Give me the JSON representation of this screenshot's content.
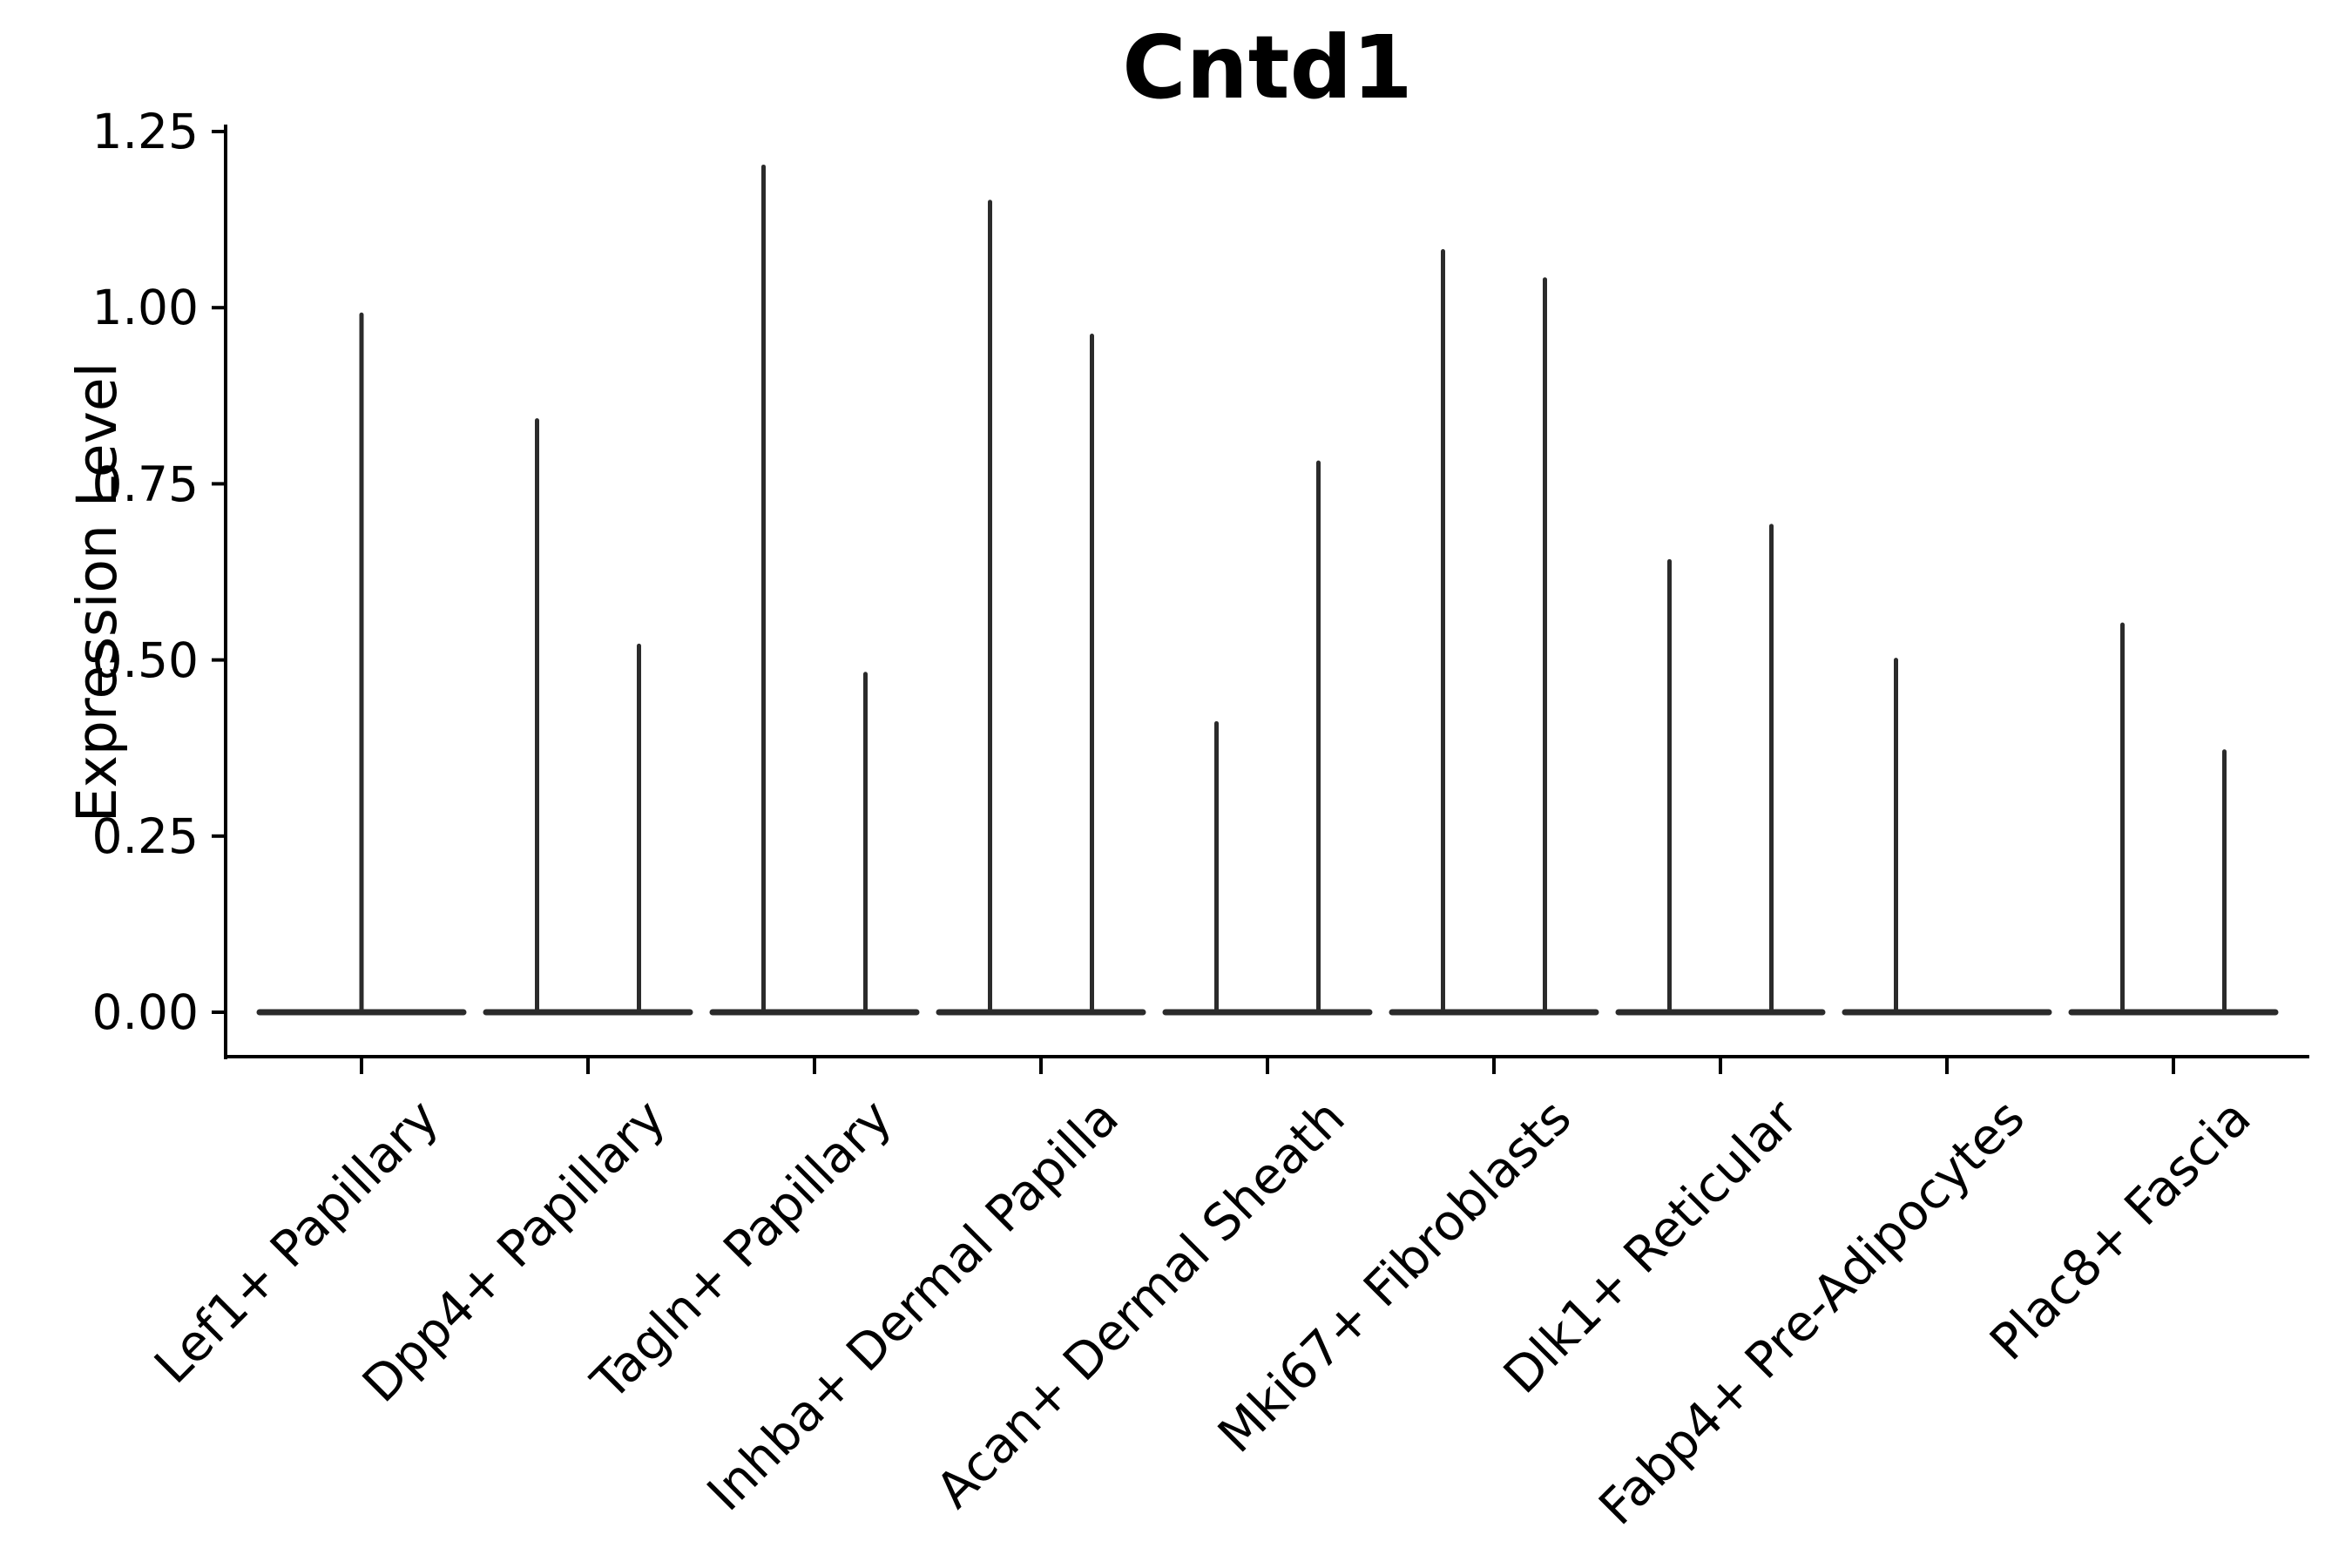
{
  "figure": {
    "background": "#ffffff",
    "text_color": "#000000",
    "axis_color": "#000000",
    "violin_color": "#2b2b2b"
  },
  "chart_data": {
    "type": "violin",
    "title": "Cntd1",
    "xlabel": "",
    "ylabel": "Expression Level",
    "ylim": [
      -0.06,
      1.26
    ],
    "grid": false,
    "legend": "none",
    "baseline_value": 0.0,
    "yticks": [
      {
        "label": "1.25",
        "value": 1.25
      },
      {
        "label": "1.00",
        "value": 1.0
      },
      {
        "label": "0.75",
        "value": 0.75
      },
      {
        "label": "0.50",
        "value": 0.5
      },
      {
        "label": "0.25",
        "value": 0.25
      },
      {
        "label": "0.00",
        "value": 0.0
      }
    ],
    "categories": [
      "Lef1+ Papillary",
      "Dpp4+ Papillary",
      "Tagln+ Papillary",
      "Inhba+ Dermal Papilla",
      "Acan+ Dermal Sheath",
      "Mki67+ Fibroblasts",
      "Dlk1+ Reticular",
      "Fabp4+ Pre-Adipocytes",
      "Plac8+ Fascia"
    ],
    "violins": [
      {
        "category": "Lef1+ Papillary",
        "spikes": [
          {
            "position": "center",
            "offset": 0,
            "max_expression": 0.99
          }
        ]
      },
      {
        "category": "Dpp4+ Papillary",
        "spikes": [
          {
            "position": "left",
            "offset": -0.225,
            "max_expression": 0.84
          },
          {
            "position": "right",
            "offset": 0.225,
            "max_expression": 0.52
          }
        ]
      },
      {
        "category": "Tagln+ Papillary",
        "spikes": [
          {
            "position": "left",
            "offset": -0.225,
            "max_expression": 1.2
          },
          {
            "position": "right",
            "offset": 0.225,
            "max_expression": 0.48
          }
        ]
      },
      {
        "category": "Inhba+ Dermal Papilla",
        "spikes": [
          {
            "position": "left",
            "offset": -0.225,
            "max_expression": 1.15
          },
          {
            "position": "right",
            "offset": 0.225,
            "max_expression": 0.96
          }
        ]
      },
      {
        "category": "Acan+ Dermal Sheath",
        "spikes": [
          {
            "position": "left",
            "offset": -0.225,
            "max_expression": 0.41
          },
          {
            "position": "right",
            "offset": 0.225,
            "max_expression": 0.78
          }
        ]
      },
      {
        "category": "Mki67+ Fibroblasts",
        "spikes": [
          {
            "position": "left",
            "offset": -0.225,
            "max_expression": 1.08
          },
          {
            "position": "right",
            "offset": 0.225,
            "max_expression": 1.04
          }
        ]
      },
      {
        "category": "Dlk1+ Reticular",
        "spikes": [
          {
            "position": "left",
            "offset": -0.225,
            "max_expression": 0.64
          },
          {
            "position": "right",
            "offset": 0.225,
            "max_expression": 0.69
          }
        ]
      },
      {
        "category": "Fabp4+ Pre-Adipocytes",
        "spikes": [
          {
            "position": "left",
            "offset": -0.225,
            "max_expression": 0.5
          }
        ]
      },
      {
        "category": "Plac8+ Fascia",
        "spikes": [
          {
            "position": "left",
            "offset": -0.225,
            "max_expression": 0.55
          },
          {
            "position": "right",
            "offset": 0.225,
            "max_expression": 0.37
          }
        ]
      }
    ]
  }
}
